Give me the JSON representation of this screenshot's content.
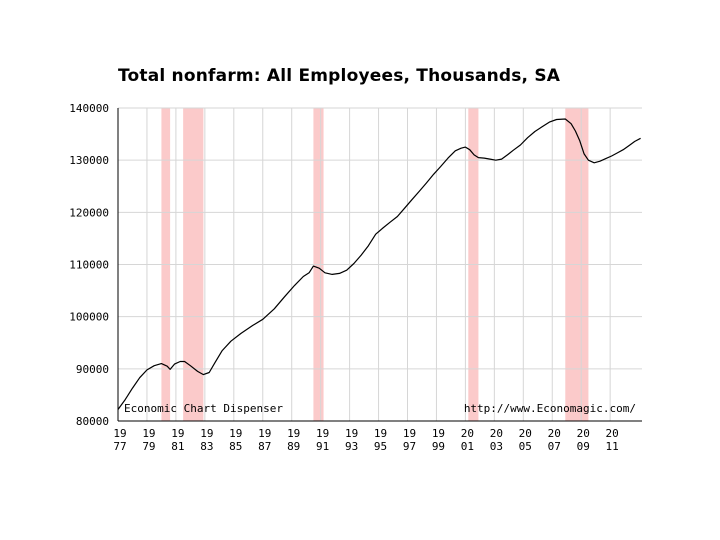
{
  "chart_data": {
    "type": "line",
    "title": "Total nonfarm: All Employees, Thousands, SA",
    "xlabel": "",
    "ylabel": "",
    "xlim": [
      1977,
      2013.2
    ],
    "ylim": [
      80000,
      140000
    ],
    "y_ticks": [
      80000,
      90000,
      100000,
      110000,
      120000,
      130000,
      140000
    ],
    "y_tick_labels": [
      "80000",
      "90000",
      "100000",
      "110000",
      "120000",
      "130000",
      "140000"
    ],
    "x_ticks": [
      {
        "year": 1977,
        "top": "19",
        "bottom": "77"
      },
      {
        "year": 1979,
        "top": "19",
        "bottom": "79"
      },
      {
        "year": 1981,
        "top": "19",
        "bottom": "81"
      },
      {
        "year": 1983,
        "top": "19",
        "bottom": "83"
      },
      {
        "year": 1985,
        "top": "19",
        "bottom": "85"
      },
      {
        "year": 1987,
        "top": "19",
        "bottom": "87"
      },
      {
        "year": 1989,
        "top": "19",
        "bottom": "89"
      },
      {
        "year": 1991,
        "top": "19",
        "bottom": "91"
      },
      {
        "year": 1993,
        "top": "19",
        "bottom": "93"
      },
      {
        "year": 1995,
        "top": "19",
        "bottom": "95"
      },
      {
        "year": 1997,
        "top": "19",
        "bottom": "97"
      },
      {
        "year": 1999,
        "top": "19",
        "bottom": "99"
      },
      {
        "year": 2001,
        "top": "20",
        "bottom": "01"
      },
      {
        "year": 2003,
        "top": "20",
        "bottom": "03"
      },
      {
        "year": 2005,
        "top": "20",
        "bottom": "05"
      },
      {
        "year": 2007,
        "top": "20",
        "bottom": "07"
      },
      {
        "year": 2009,
        "top": "20",
        "bottom": "09"
      },
      {
        "year": 2011,
        "top": "20",
        "bottom": "11"
      }
    ],
    "grid": true,
    "recessions": [
      [
        1980.0,
        1980.6
      ],
      [
        1981.5,
        1982.9
      ],
      [
        1990.5,
        1991.2
      ],
      [
        2001.2,
        2001.9
      ],
      [
        2007.9,
        2009.5
      ]
    ],
    "annotations": {
      "left": "Economic Chart Dispenser",
      "right": "http://www.Economagic.com/"
    },
    "colors": {
      "line": "#000000",
      "recession": "#fbcaca",
      "grid": "#d6d6d6",
      "axis": "#000000"
    },
    "series": [
      {
        "x": [
          1977.0,
          1977.5,
          1978.0,
          1978.5,
          1979.0,
          1979.5,
          1980.0,
          1980.4,
          1980.6,
          1980.9,
          1981.3,
          1981.6,
          1982.0,
          1982.5,
          1982.9,
          1983.3,
          1983.7,
          1984.2,
          1984.8,
          1985.5,
          1986.3,
          1987.0,
          1987.8,
          1988.5,
          1989.2,
          1989.8,
          1990.2,
          1990.5,
          1990.9,
          1991.3,
          1991.8,
          1992.3,
          1992.8,
          1993.3,
          1993.8,
          1994.3,
          1994.8,
          1995.3,
          1995.8,
          1996.3,
          1996.8,
          1997.3,
          1997.8,
          1998.3,
          1998.8,
          1999.3,
          1999.8,
          2000.3,
          2000.7,
          2001.0,
          2001.3,
          2001.6,
          2001.9,
          2002.3,
          2002.7,
          2003.1,
          2003.5,
          2003.9,
          2004.3,
          2004.8,
          2005.3,
          2005.8,
          2006.3,
          2006.8,
          2007.3,
          2007.9,
          2008.3,
          2008.6,
          2008.9,
          2009.2,
          2009.5,
          2009.9,
          2010.3,
          2010.7,
          2011.1,
          2011.5,
          2011.9,
          2012.3,
          2012.7,
          2013.1
        ],
        "values": [
          82200,
          84100,
          86300,
          88300,
          89800,
          90600,
          91000,
          90500,
          89900,
          90900,
          91400,
          91400,
          90600,
          89500,
          88900,
          89300,
          91200,
          93500,
          95300,
          96800,
          98300,
          99500,
          101500,
          103800,
          106000,
          107700,
          108400,
          109700,
          109300,
          108400,
          108100,
          108300,
          108900,
          110200,
          111800,
          113600,
          115800,
          117000,
          118100,
          119200,
          120800,
          122400,
          124000,
          125600,
          127300,
          128800,
          130400,
          131800,
          132300,
          132500,
          132000,
          131000,
          130500,
          130400,
          130200,
          130000,
          130200,
          131000,
          131900,
          132900,
          134300,
          135500,
          136400,
          137300,
          137800,
          137900,
          137000,
          135600,
          133700,
          131200,
          130000,
          129500,
          129800,
          130300,
          130800,
          131400,
          132000,
          132800,
          133600,
          134200
        ]
      }
    ]
  }
}
